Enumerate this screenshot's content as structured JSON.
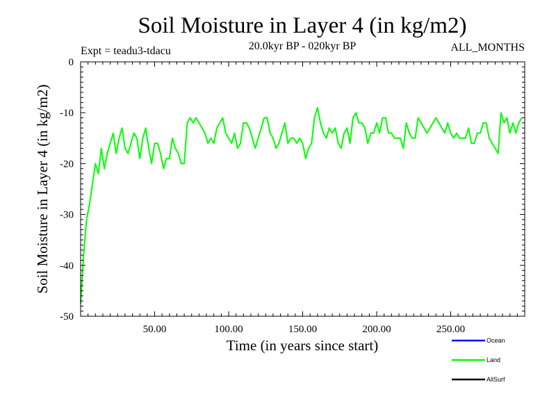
{
  "chart_data": {
    "type": "line",
    "title": "Soil Moisture in Layer 4 (in kg/m2)",
    "subtitle": "20.0kyr BP - 020kyr BP",
    "expt_label": "Expt = teadu3-tdacu",
    "months_label": "ALL_MONTHS",
    "xlabel": "Time (in years since start)",
    "ylabel": "Soil Moisture in Layer 4 (in kg/m2)",
    "xlim": [
      0,
      300
    ],
    "ylim": [
      -50,
      0
    ],
    "x_ticks": [
      50,
      100,
      150,
      200,
      250
    ],
    "x_tick_labels": [
      "50.00",
      "100.00",
      "150.00",
      "200.00",
      "250.00"
    ],
    "y_ticks": [
      0,
      -10,
      -20,
      -30,
      -40,
      -50
    ],
    "y_tick_labels": [
      "0",
      "-10",
      "-20",
      "-30",
      "-40",
      "-50"
    ],
    "legend": [
      {
        "name": "Ocean",
        "color": "#0000ff"
      },
      {
        "name": "Land",
        "color": "#00ff00"
      },
      {
        "name": "AllSurf",
        "color": "#000000"
      }
    ],
    "series": [
      {
        "name": "Land",
        "color": "#00ff00",
        "x_start": 0,
        "x_step": 2,
        "values": [
          -47.5,
          -38,
          -31,
          -28,
          -24,
          -20,
          -22,
          -17,
          -21,
          -18,
          -16,
          -14,
          -18,
          -15,
          -13,
          -17,
          -18,
          -16,
          -14,
          -15,
          -19,
          -15,
          -13,
          -17,
          -20,
          -16,
          -16,
          -18,
          -21,
          -19,
          -19,
          -15,
          -17,
          -18,
          -20,
          -20,
          -12,
          -11,
          -12,
          -11,
          -12,
          -13,
          -14,
          -16,
          -15,
          -16,
          -13,
          -12,
          -11,
          -14,
          -15,
          -16,
          -14,
          -17,
          -16,
          -12,
          -12,
          -13,
          -15,
          -17,
          -15,
          -13,
          -11,
          -11,
          -14,
          -15,
          -17,
          -16,
          -14,
          -12,
          -16,
          -15,
          -15,
          -16,
          -15,
          -16,
          -19,
          -17,
          -16,
          -11,
          -9,
          -12,
          -14,
          -15,
          -13,
          -14,
          -13,
          -16,
          -17,
          -14,
          -13,
          -16,
          -11,
          -10,
          -12,
          -12,
          -13,
          -16,
          -14,
          -14,
          -12,
          -14,
          -11,
          -11,
          -14,
          -14,
          -15,
          -15,
          -15,
          -17,
          -12,
          -14,
          -15,
          -15,
          -11,
          -12,
          -13,
          -14,
          -13,
          -12,
          -11,
          -12,
          -13,
          -14,
          -12,
          -14,
          -15,
          -14,
          -15,
          -15,
          -15,
          -13,
          -16,
          -16,
          -14,
          -14,
          -12,
          -12,
          -15,
          -16,
          -17,
          -18,
          -10,
          -12,
          -11,
          -14,
          -12,
          -14,
          -12,
          -11
        ]
      }
    ]
  }
}
